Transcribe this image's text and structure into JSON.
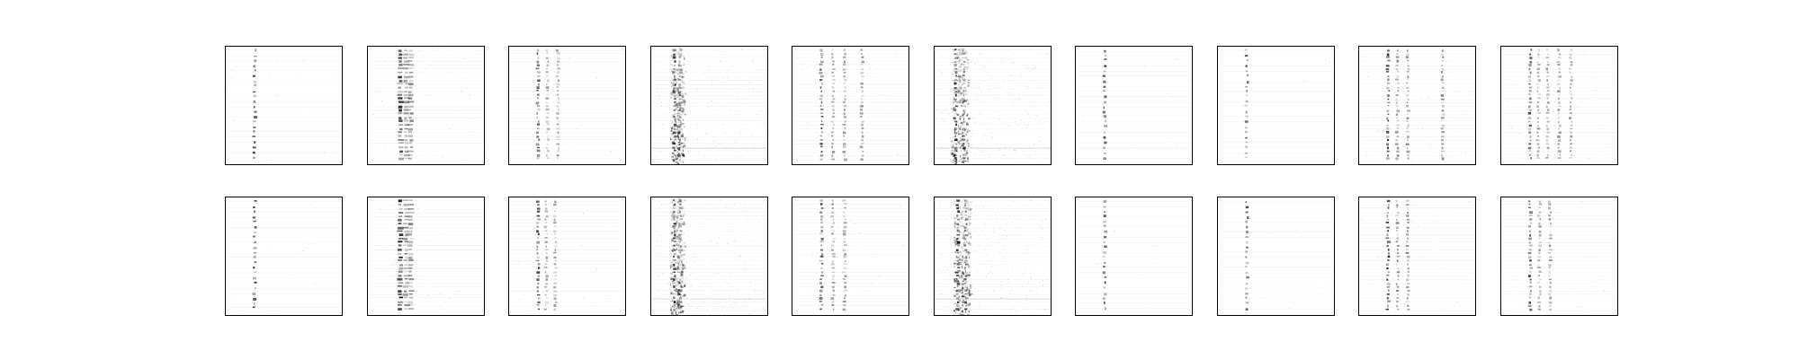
{
  "figure": {
    "rows": 2,
    "cols": 10,
    "background": "#ffffff",
    "frame_color": "#000000",
    "ink_color": "#000000",
    "axes_ticks": "none",
    "panels": [
      {
        "id": "r1c1",
        "pattern": "sparse-column",
        "columns": [
          0.25
        ],
        "intensity": 0.75,
        "noise": 0.02
      },
      {
        "id": "r1c2",
        "pattern": "dense-columns",
        "columns": [
          0.28,
          0.33,
          0.37
        ],
        "intensity": 0.85,
        "noise": 0.05
      },
      {
        "id": "r1c3",
        "pattern": "dotted-rows",
        "columns": [
          0.25,
          0.33,
          0.42
        ],
        "intensity": 0.7,
        "noise": 0.02
      },
      {
        "id": "r1c4",
        "pattern": "smeared-band",
        "columns": [
          0.2,
          0.25
        ],
        "intensity": 0.85,
        "noise": 0.18
      },
      {
        "id": "r1c5",
        "pattern": "dotted-rows",
        "columns": [
          0.25,
          0.35,
          0.45,
          0.6
        ],
        "intensity": 0.75,
        "noise": 0.03
      },
      {
        "id": "r1c6",
        "pattern": "smeared-band",
        "columns": [
          0.18,
          0.25
        ],
        "intensity": 0.9,
        "noise": 0.22
      },
      {
        "id": "r1c7",
        "pattern": "sparse-column",
        "columns": [
          0.25
        ],
        "intensity": 0.7,
        "noise": 0.01
      },
      {
        "id": "r1c8",
        "pattern": "sparse-column",
        "columns": [
          0.25
        ],
        "intensity": 0.65,
        "noise": 0.01
      },
      {
        "id": "r1c9",
        "pattern": "dotted-rows",
        "columns": [
          0.25,
          0.33,
          0.42,
          0.72
        ],
        "intensity": 0.85,
        "noise": 0.04
      },
      {
        "id": "r1c10",
        "pattern": "dotted-rows",
        "columns": [
          0.25,
          0.32,
          0.4,
          0.5,
          0.6
        ],
        "intensity": 0.75,
        "noise": 0.03
      },
      {
        "id": "r2c1",
        "pattern": "sparse-column",
        "columns": [
          0.25
        ],
        "intensity": 0.8,
        "noise": 0.02
      },
      {
        "id": "r2c2",
        "pattern": "dense-columns",
        "columns": [
          0.28,
          0.33,
          0.37
        ],
        "intensity": 0.9,
        "noise": 0.05
      },
      {
        "id": "r2c3",
        "pattern": "dotted-rows",
        "columns": [
          0.25,
          0.32,
          0.4
        ],
        "intensity": 0.75,
        "noise": 0.02
      },
      {
        "id": "r2c4",
        "pattern": "smeared-band",
        "columns": [
          0.2,
          0.25
        ],
        "intensity": 0.85,
        "noise": 0.18
      },
      {
        "id": "r2c5",
        "pattern": "dotted-rows",
        "columns": [
          0.25,
          0.35,
          0.45
        ],
        "intensity": 0.8,
        "noise": 0.03
      },
      {
        "id": "r2c6",
        "pattern": "smeared-band",
        "columns": [
          0.2,
          0.27
        ],
        "intensity": 0.9,
        "noise": 0.22
      },
      {
        "id": "r2c7",
        "pattern": "sparse-column",
        "columns": [
          0.25
        ],
        "intensity": 0.75,
        "noise": 0.01
      },
      {
        "id": "r2c8",
        "pattern": "sparse-column",
        "columns": [
          0.25
        ],
        "intensity": 0.7,
        "noise": 0.01
      },
      {
        "id": "r2c9",
        "pattern": "dotted-rows",
        "columns": [
          0.25,
          0.33,
          0.42
        ],
        "intensity": 0.85,
        "noise": 0.04
      },
      {
        "id": "r2c10",
        "pattern": "dotted-rows",
        "columns": [
          0.25,
          0.33,
          0.42
        ],
        "intensity": 0.75,
        "noise": 0.03
      }
    ]
  }
}
